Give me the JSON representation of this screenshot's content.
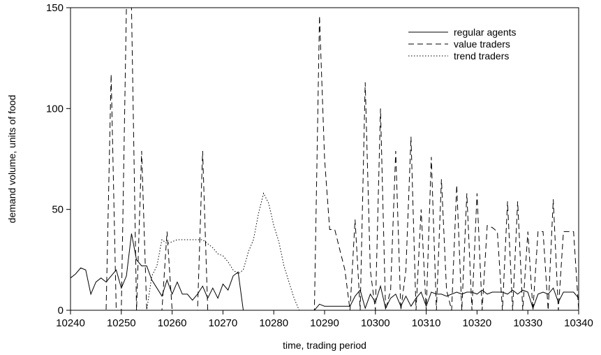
{
  "chart_data": {
    "type": "line",
    "title": "",
    "xlabel": "time, trading period",
    "ylabel": "demand volume, units of food",
    "xlim": [
      10240,
      10340
    ],
    "ylim": [
      0,
      150
    ],
    "xticks": [
      10240,
      10250,
      10260,
      10270,
      10280,
      10290,
      10300,
      10310,
      10320,
      10330,
      10340
    ],
    "yticks": [
      0,
      50,
      100,
      150
    ],
    "grid": false,
    "legend_position": "top-right",
    "series": [
      {
        "name": "regular agents",
        "style": "solid",
        "points": [
          [
            10240,
            16
          ],
          [
            10241,
            18
          ],
          [
            10242,
            21
          ],
          [
            10243,
            20
          ],
          [
            10244,
            8
          ],
          [
            10245,
            14
          ],
          [
            10246,
            16
          ],
          [
            10247,
            14
          ],
          [
            10248,
            17
          ],
          [
            10249,
            20
          ],
          [
            10250,
            11
          ],
          [
            10251,
            17
          ],
          [
            10252,
            38
          ],
          [
            10253,
            25
          ],
          [
            10254,
            22
          ],
          [
            10255,
            22
          ],
          [
            10256,
            15
          ],
          [
            10257,
            11
          ],
          [
            10258,
            7
          ],
          [
            10259,
            15
          ],
          [
            10260,
            8
          ],
          [
            10261,
            14
          ],
          [
            10262,
            8
          ],
          [
            10263,
            8
          ],
          [
            10264,
            5
          ],
          [
            10265,
            8
          ],
          [
            10266,
            12
          ],
          [
            10267,
            6
          ],
          [
            10268,
            11
          ],
          [
            10269,
            6
          ],
          [
            10270,
            13
          ],
          [
            10271,
            10
          ],
          [
            10272,
            17
          ],
          [
            10273,
            19
          ],
          [
            10274,
            0
          ],
          [
            10288,
            0
          ],
          [
            10289,
            3
          ],
          [
            10290,
            2
          ],
          [
            10291,
            2
          ],
          [
            10292,
            2
          ],
          [
            10293,
            2
          ],
          [
            10294,
            2
          ],
          [
            10295,
            2
          ],
          [
            10296,
            7
          ],
          [
            10297,
            10
          ],
          [
            10298,
            1
          ],
          [
            10299,
            8
          ],
          [
            10300,
            4
          ],
          [
            10301,
            12
          ],
          [
            10302,
            1
          ],
          [
            10303,
            6
          ],
          [
            10304,
            8
          ],
          [
            10305,
            2
          ],
          [
            10306,
            7
          ],
          [
            10307,
            2
          ],
          [
            10308,
            6
          ],
          [
            10309,
            9
          ],
          [
            10310,
            2
          ],
          [
            10311,
            9
          ],
          [
            10312,
            8
          ],
          [
            10313,
            8
          ],
          [
            10314,
            7
          ],
          [
            10315,
            8
          ],
          [
            10316,
            9
          ],
          [
            10317,
            8
          ],
          [
            10318,
            9
          ],
          [
            10319,
            9
          ],
          [
            10320,
            8
          ],
          [
            10321,
            10
          ],
          [
            10322,
            8
          ],
          [
            10323,
            9
          ],
          [
            10324,
            9
          ],
          [
            10325,
            9
          ],
          [
            10326,
            8
          ],
          [
            10327,
            10
          ],
          [
            10328,
            8
          ],
          [
            10329,
            10
          ],
          [
            10330,
            9
          ],
          [
            10331,
            1
          ],
          [
            10332,
            8
          ],
          [
            10333,
            9
          ],
          [
            10334,
            8
          ],
          [
            10335,
            11
          ],
          [
            10336,
            4
          ],
          [
            10337,
            9
          ],
          [
            10338,
            9
          ],
          [
            10339,
            9
          ],
          [
            10340,
            6
          ]
        ]
      },
      {
        "name": "value traders",
        "style": "dashed",
        "points": [
          [
            10240,
            0
          ],
          [
            10247,
            0
          ],
          [
            10248,
            117
          ],
          [
            10249,
            0
          ],
          [
            10250,
            0
          ],
          [
            10251,
            150
          ],
          [
            10252,
            150
          ],
          [
            10253,
            0
          ],
          [
            10254,
            79
          ],
          [
            10255,
            0
          ],
          [
            10258,
            0
          ],
          [
            10259,
            39
          ],
          [
            10260,
            0
          ],
          [
            10265,
            0
          ],
          [
            10266,
            79
          ],
          [
            10267,
            0
          ],
          [
            10288,
            0
          ],
          [
            10289,
            146
          ],
          [
            10290,
            75
          ],
          [
            10291,
            40
          ],
          [
            10292,
            40
          ],
          [
            10293,
            30
          ],
          [
            10294,
            20
          ],
          [
            10295,
            0
          ],
          [
            10296,
            45
          ],
          [
            10297,
            0
          ],
          [
            10298,
            113
          ],
          [
            10299,
            20
          ],
          [
            10300,
            0
          ],
          [
            10301,
            100
          ],
          [
            10302,
            0
          ],
          [
            10303,
            10
          ],
          [
            10304,
            79
          ],
          [
            10305,
            0
          ],
          [
            10306,
            20
          ],
          [
            10307,
            86
          ],
          [
            10308,
            0
          ],
          [
            10309,
            50
          ],
          [
            10310,
            0
          ],
          [
            10311,
            76
          ],
          [
            10312,
            0
          ],
          [
            10313,
            65
          ],
          [
            10314,
            10
          ],
          [
            10315,
            0
          ],
          [
            10316,
            62
          ],
          [
            10317,
            0
          ],
          [
            10318,
            58
          ],
          [
            10319,
            0
          ],
          [
            10320,
            58
          ],
          [
            10321,
            0
          ],
          [
            10322,
            42
          ],
          [
            10323,
            41
          ],
          [
            10324,
            39
          ],
          [
            10325,
            0
          ],
          [
            10326,
            54
          ],
          [
            10327,
            0
          ],
          [
            10328,
            54
          ],
          [
            10329,
            0
          ],
          [
            10330,
            39
          ],
          [
            10331,
            0
          ],
          [
            10332,
            39
          ],
          [
            10333,
            39
          ],
          [
            10334,
            0
          ],
          [
            10335,
            55
          ],
          [
            10336,
            0
          ],
          [
            10337,
            39
          ],
          [
            10338,
            39
          ],
          [
            10339,
            39
          ],
          [
            10340,
            0
          ]
        ]
      },
      {
        "name": "trend traders",
        "style": "dotted",
        "points": [
          [
            10240,
            0
          ],
          [
            10253,
            0
          ],
          [
            10254,
            0
          ],
          [
            10255,
            0
          ],
          [
            10256,
            17
          ],
          [
            10257,
            22
          ],
          [
            10258,
            35
          ],
          [
            10259,
            33
          ],
          [
            10260,
            34
          ],
          [
            10261,
            35
          ],
          [
            10262,
            35
          ],
          [
            10263,
            35
          ],
          [
            10264,
            35
          ],
          [
            10265,
            35
          ],
          [
            10266,
            35
          ],
          [
            10267,
            33
          ],
          [
            10268,
            31
          ],
          [
            10269,
            28
          ],
          [
            10270,
            27
          ],
          [
            10271,
            24
          ],
          [
            10272,
            20
          ],
          [
            10273,
            18
          ],
          [
            10274,
            20
          ],
          [
            10275,
            29
          ],
          [
            10276,
            35
          ],
          [
            10277,
            48
          ],
          [
            10278,
            58
          ],
          [
            10279,
            53
          ],
          [
            10280,
            42
          ],
          [
            10281,
            34
          ],
          [
            10282,
            22
          ],
          [
            10283,
            14
          ],
          [
            10284,
            6
          ],
          [
            10285,
            0
          ],
          [
            10340,
            0
          ]
        ]
      }
    ]
  }
}
